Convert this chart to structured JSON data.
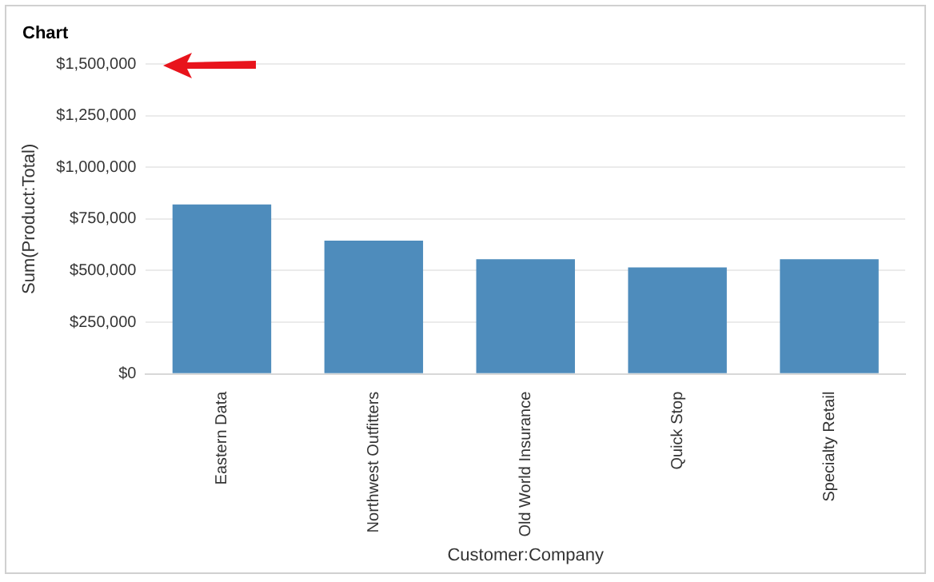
{
  "chart_data": {
    "type": "bar",
    "title": "Chart",
    "xlabel": "Customer:Company",
    "ylabel": "Sum(Product:Total)",
    "categories": [
      "Eastern Data",
      "Northwest Outfitters",
      "Old World Insurance",
      "Quick Stop",
      "Specialty Retail"
    ],
    "values": [
      820000,
      645000,
      555000,
      515000,
      555000
    ],
    "color": "#4e8cbc",
    "ylim": [
      0,
      1500000
    ],
    "yticks": [
      {
        "value": 0,
        "label": "$0"
      },
      {
        "value": 250000,
        "label": "$250,000"
      },
      {
        "value": 500000,
        "label": "$500,000"
      },
      {
        "value": 750000,
        "label": "$750,000"
      },
      {
        "value": 1000000,
        "label": "$1,000,000"
      },
      {
        "value": 1250000,
        "label": "$1,250,000"
      },
      {
        "value": 1500000,
        "label": "$1,500,000"
      }
    ],
    "grid": "y",
    "legend": false
  }
}
